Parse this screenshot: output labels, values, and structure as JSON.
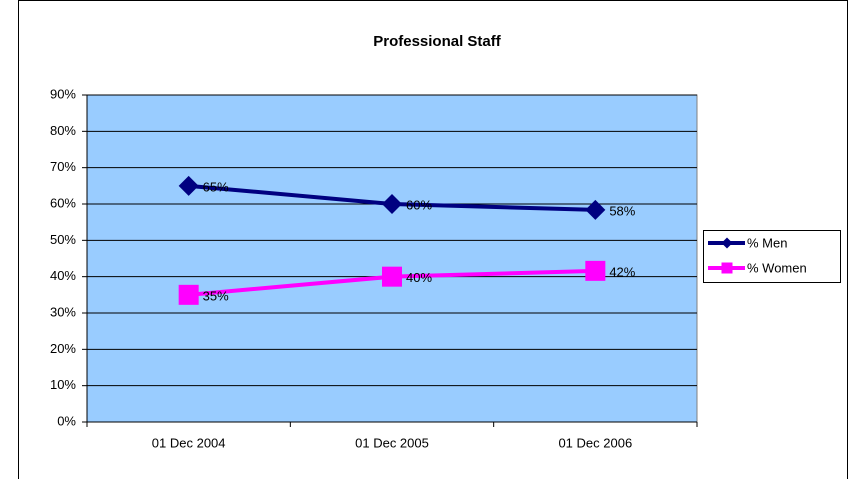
{
  "chart_data": {
    "type": "line",
    "title": "Professional Staff",
    "categories": [
      "01 Dec 2004",
      "01 Dec 2005",
      "01 Dec 2006"
    ],
    "series": [
      {
        "name": "% Men",
        "color": "#000080",
        "marker": "diamond",
        "values": [
          65,
          60,
          58.4
        ],
        "value_labels": [
          "65%",
          "60%",
          "58%"
        ]
      },
      {
        "name": "% Women",
        "color": "#ff00ff",
        "marker": "square",
        "values": [
          35,
          40,
          41.6
        ],
        "value_labels": [
          "35%",
          "40%",
          "42%"
        ]
      }
    ],
    "ylim": [
      0,
      90
    ],
    "yticks": [
      {
        "value": 0,
        "label": "0%"
      },
      {
        "value": 10,
        "label": "10%"
      },
      {
        "value": 20,
        "label": "20%"
      },
      {
        "value": 30,
        "label": "30%"
      },
      {
        "value": 40,
        "label": "40%"
      },
      {
        "value": 50,
        "label": "50%"
      },
      {
        "value": 60,
        "label": "60%"
      },
      {
        "value": 70,
        "label": "70%"
      },
      {
        "value": 80,
        "label": "80%"
      },
      {
        "value": 90,
        "label": "90%"
      }
    ],
    "grid": true,
    "legend": "right",
    "plot_background": "#99ccff"
  }
}
